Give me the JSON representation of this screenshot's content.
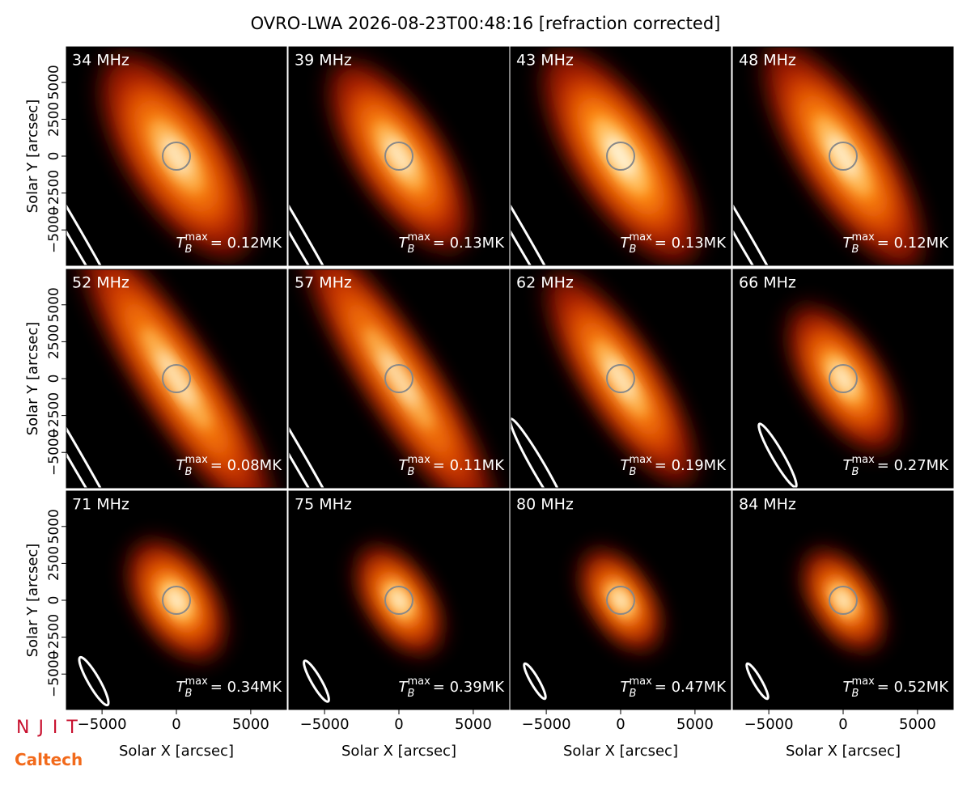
{
  "chart_data": {
    "type": "image-grid",
    "title": "OVRO-LWA 2026-08-23T00:48:16 [refraction corrected]",
    "xlabel": "Solar X [arcsec]",
    "ylabel": "Solar Y [arcsec]",
    "xlim": [
      -7400,
      7400
    ],
    "ylim": [
      -7400,
      7400
    ],
    "xticks": [
      {
        "value": -5000,
        "label": "−5000"
      },
      0,
      5000
    ],
    "yticks": [
      {
        "value": -5000,
        "label": "−5000"
      },
      {
        "value": -2500,
        "label": "−2500"
      },
      0,
      2500,
      5000
    ],
    "tb_symbol": {
      "base": "T",
      "sub": "B",
      "sup": "max"
    },
    "panels": [
      {
        "freq": "34 MHz",
        "tmax": "= 0.12MK"
      },
      {
        "freq": "39 MHz",
        "tmax": "= 0.13MK"
      },
      {
        "freq": "43 MHz",
        "tmax": "= 0.13MK"
      },
      {
        "freq": "48 MHz",
        "tmax": "= 0.12MK"
      },
      {
        "freq": "52 MHz",
        "tmax": "= 0.08MK"
      },
      {
        "freq": "57 MHz",
        "tmax": "= 0.11MK"
      },
      {
        "freq": "62 MHz",
        "tmax": "= 0.19MK"
      },
      {
        "freq": "66 MHz",
        "tmax": "= 0.27MK"
      },
      {
        "freq": "71 MHz",
        "tmax": "= 0.34MK"
      },
      {
        "freq": "75 MHz",
        "tmax": "= 0.39MK"
      },
      {
        "freq": "80 MHz",
        "tmax": "= 0.47MK"
      },
      {
        "freq": "84 MHz",
        "tmax": "= 0.52MK"
      }
    ]
  },
  "logos": [
    "N J I T",
    "Caltech"
  ]
}
